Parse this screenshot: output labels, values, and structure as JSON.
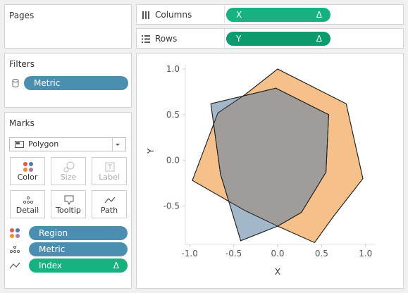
{
  "pages": {
    "title": "Pages"
  },
  "filters": {
    "title": "Filters",
    "pill": "Metric"
  },
  "marks": {
    "title": "Marks",
    "mark_type": "Polygon",
    "buttons": {
      "color": "Color",
      "size": "Size",
      "label": "Label",
      "detail": "Detail",
      "tooltip": "Tooltip",
      "path": "Path"
    },
    "fields": [
      {
        "label": "Region",
        "icon": "color-dots-icon"
      },
      {
        "label": "Metric",
        "icon": "detail-dots-icon"
      },
      {
        "label": "Index",
        "icon": "path-line-icon",
        "delta": "Δ"
      }
    ]
  },
  "columns": {
    "label": "Columns",
    "pill": "X",
    "delta": "Δ"
  },
  "rows": {
    "label": "Rows",
    "pill": "Y",
    "delta": "Δ"
  },
  "chart_data": {
    "type": "area",
    "xlabel": "X",
    "ylabel": "Y",
    "xlim": [
      -1.05,
      1.05
    ],
    "ylim": [
      -0.92,
      1.0
    ],
    "x_ticks": [
      "-1.0",
      "-0.5",
      "0.0",
      "0.5",
      "1.0"
    ],
    "y_ticks": [
      "1.0",
      "0.5",
      "0.0",
      "-0.5"
    ],
    "series": [
      {
        "color": "#f5c08a",
        "points": [
          [
            0.0,
            1.0
          ],
          [
            0.78,
            0.62
          ],
          [
            0.97,
            -0.2
          ],
          [
            0.63,
            -0.62
          ],
          [
            0.42,
            -0.9
          ],
          [
            0.0,
            -0.72
          ],
          [
            -0.37,
            -0.55
          ],
          [
            -0.97,
            -0.22
          ],
          [
            -0.68,
            0.52
          ],
          [
            -0.37,
            0.72
          ]
        ]
      },
      {
        "color": "#93aac2",
        "points": [
          [
            -0.02,
            0.79
          ],
          [
            0.58,
            0.5
          ],
          [
            0.55,
            -0.13
          ],
          [
            0.27,
            -0.57
          ],
          [
            0.0,
            -0.72
          ],
          [
            -0.42,
            -0.88
          ],
          [
            -0.65,
            -0.15
          ],
          [
            -0.76,
            0.62
          ]
        ]
      }
    ]
  }
}
